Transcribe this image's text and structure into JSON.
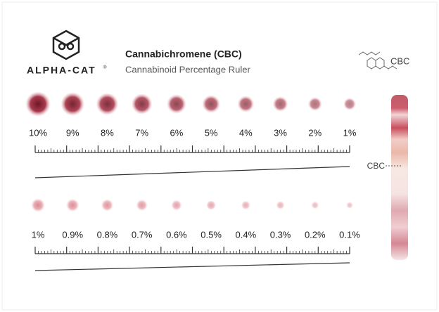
{
  "header": {
    "brand": "ALPHA-CAT",
    "registered": "®",
    "title": "Cannabichromene (CBC)",
    "subtitle": "Cannabinoid Percentage Ruler",
    "molecule_label": "CBC"
  },
  "rulers": [
    {
      "labels": [
        "10%",
        "9%",
        "8%",
        "7%",
        "6%",
        "5%",
        "4%",
        "3%",
        "2%",
        "1%"
      ]
    },
    {
      "labels": [
        "1%",
        "0.9%",
        "0.8%",
        "0.7%",
        "0.6%",
        "0.5%",
        "0.4%",
        "0.3%",
        "0.2%",
        "0.1%"
      ]
    }
  ],
  "strip": {
    "label": "CBC"
  }
}
